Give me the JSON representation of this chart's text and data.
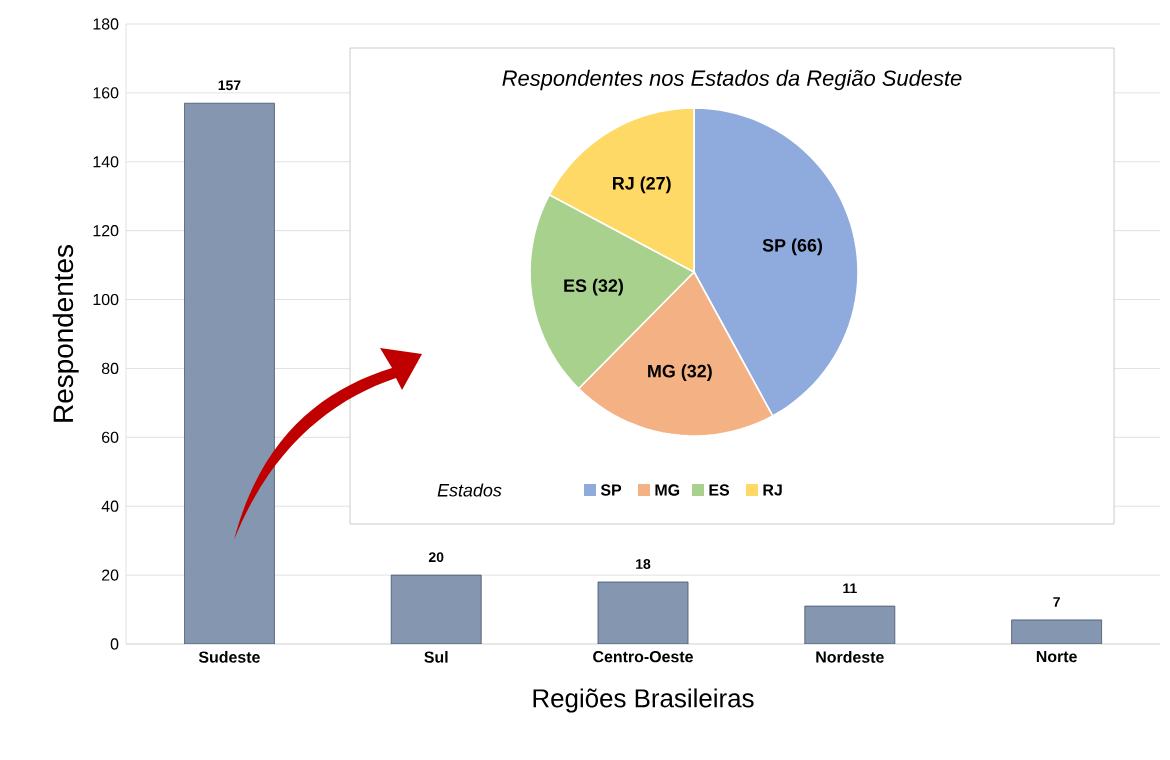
{
  "chart_data": [
    {
      "type": "bar",
      "categories": [
        "Sudeste",
        "Sul",
        "Centro-Oeste",
        "Nordeste",
        "Norte"
      ],
      "values": [
        157,
        20,
        18,
        11,
        7
      ],
      "color": "#8496b0",
      "xlabel": "Regiões Brasileiras",
      "ylabel": "Respondentes",
      "ylim": [
        0,
        180
      ],
      "yticks": [
        0,
        20,
        40,
        60,
        80,
        100,
        120,
        140,
        160,
        180
      ],
      "grid": "y",
      "data_labels": true
    },
    {
      "type": "pie",
      "title": "Respondentes nos Estados da Região Sudeste",
      "categories": [
        "SP",
        "MG",
        "ES",
        "RJ"
      ],
      "values": [
        66,
        32,
        32,
        27
      ],
      "value_labels": [
        "SP (66)",
        "MG (32)",
        "ES (32)",
        "RJ (27)"
      ],
      "colors": [
        "#8faadc",
        "#f4b183",
        "#a9d18e",
        "#ffd966"
      ],
      "legend": "bottom",
      "legend_title": "Estados"
    }
  ]
}
